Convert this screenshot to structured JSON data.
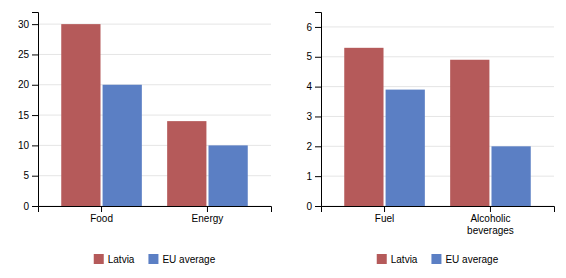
{
  "chart_data": [
    {
      "type": "bar",
      "categories": [
        "Food",
        "Energy"
      ],
      "series": [
        {
          "name": "Latvia",
          "color": "#b55a5a",
          "values": [
            30,
            14
          ]
        },
        {
          "name": "EU average",
          "color": "#5b7fc4",
          "values": [
            20,
            10
          ]
        }
      ],
      "ylim": [
        0,
        32
      ],
      "yticks": [
        0,
        5,
        10,
        15,
        20,
        25,
        30
      ],
      "grid": true,
      "legend": "bottom"
    },
    {
      "type": "bar",
      "categories": [
        "Fuel",
        "Alcoholic\nbeverages"
      ],
      "series": [
        {
          "name": "Latvia",
          "color": "#b55a5a",
          "values": [
            5.3,
            4.9
          ]
        },
        {
          "name": "EU average",
          "color": "#5b7fc4",
          "values": [
            3.9,
            2.0
          ]
        }
      ],
      "ylim": [
        0,
        6.5
      ],
      "yticks": [
        0,
        1,
        2,
        3,
        4,
        5,
        6
      ],
      "grid": true,
      "legend": "bottom"
    }
  ]
}
